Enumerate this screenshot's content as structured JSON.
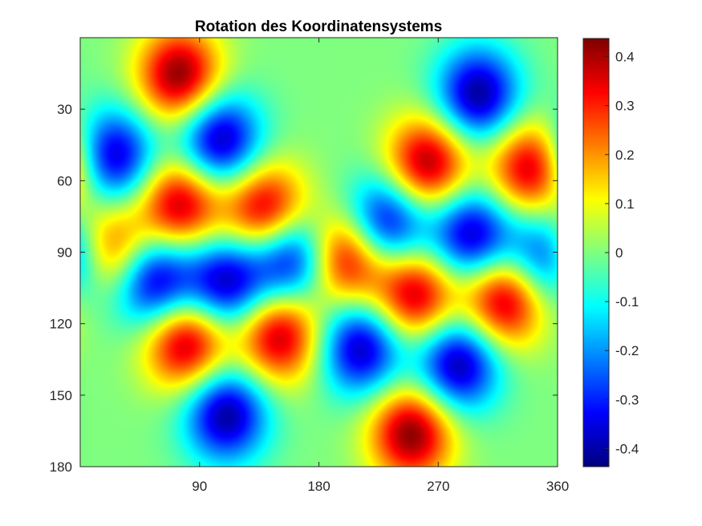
{
  "chart_data": {
    "type": "heatmap",
    "title": "Rotation des Koordinatensystems",
    "xlabel": "",
    "ylabel": "",
    "xlim": [
      0,
      360
    ],
    "ylim": [
      0,
      180
    ],
    "y_direction": "reversed",
    "x_ticks": [
      "90",
      "180",
      "270",
      "360"
    ],
    "y_ticks": [
      "30",
      "60",
      "90",
      "120",
      "150",
      "180"
    ],
    "colormap": "jet",
    "clim": [
      -0.437,
      0.437
    ],
    "colorbar_ticks": [
      "0.4",
      "0.3",
      "0.2",
      "0.1",
      "0",
      "-0.1",
      "-0.2",
      "-0.3",
      "-0.4"
    ],
    "blobs": [
      {
        "lon": 75,
        "lat": 16,
        "value": 0.437
      },
      {
        "lon": 300,
        "lat": 24,
        "value": -0.42
      },
      {
        "lon": 25,
        "lat": 50,
        "value": -0.4
      },
      {
        "lon": 105,
        "lat": 43,
        "value": -0.42
      },
      {
        "lon": 262,
        "lat": 53,
        "value": 0.42
      },
      {
        "lon": 340,
        "lat": 55,
        "value": 0.4
      },
      {
        "lon": 75,
        "lat": 70,
        "value": 0.4
      },
      {
        "lon": 140,
        "lat": 73,
        "value": 0.42
      },
      {
        "lon": 230,
        "lat": 78,
        "value": -0.4
      },
      {
        "lon": 295,
        "lat": 83,
        "value": -0.4
      },
      {
        "lon": 20,
        "lat": 90,
        "value": 0.42
      },
      {
        "lon": 160,
        "lat": 92,
        "value": -0.42
      },
      {
        "lon": 200,
        "lat": 92,
        "value": 0.42
      },
      {
        "lon": 355,
        "lat": 92,
        "value": -0.42
      },
      {
        "lon": 55,
        "lat": 102,
        "value": -0.42
      },
      {
        "lon": 110,
        "lat": 103,
        "value": -0.4
      },
      {
        "lon": 252,
        "lat": 108,
        "value": 0.4
      },
      {
        "lon": 320,
        "lat": 110,
        "value": 0.42
      },
      {
        "lon": 80,
        "lat": 128,
        "value": 0.42
      },
      {
        "lon": 150,
        "lat": 125,
        "value": 0.4
      },
      {
        "lon": 212,
        "lat": 130,
        "value": -0.4
      },
      {
        "lon": 285,
        "lat": 137,
        "value": -0.42
      },
      {
        "lon": 110,
        "lat": 158,
        "value": -0.42
      },
      {
        "lon": 250,
        "lat": 166,
        "value": 0.437
      }
    ]
  }
}
